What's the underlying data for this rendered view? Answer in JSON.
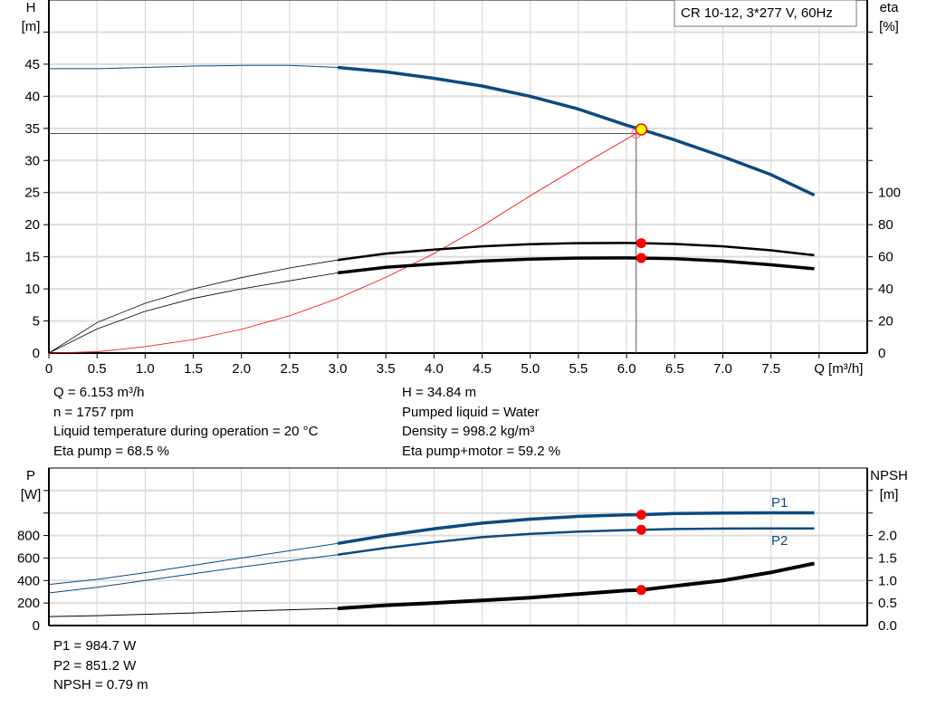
{
  "chart_data": [
    {
      "type": "line",
      "title": "CR 10-12, 3*277 V, 60Hz",
      "xlabel": "Q [m³/h]",
      "xlim": [
        0,
        8.5
      ],
      "xticks": [
        "0",
        "0.5",
        "1.0",
        "1.5",
        "2.0",
        "2.5",
        "3.0",
        "3.5",
        "4.0",
        "4.5",
        "5.0",
        "5.5",
        "6.0",
        "6.5",
        "7.0",
        "7.5"
      ],
      "ylabel": "H",
      "yunit": "[m]",
      "ylim": [
        0,
        55
      ],
      "yticks": [
        "0",
        "5",
        "10",
        "15",
        "20",
        "25",
        "30",
        "35",
        "40",
        "45"
      ],
      "y2label": "eta",
      "y2unit": "[%]",
      "y2lim": [
        0,
        220
      ],
      "y2ticks": [
        "0",
        "20",
        "40",
        "60",
        "80",
        "100"
      ],
      "grid": true,
      "x": [
        0,
        0.5,
        1,
        1.5,
        2,
        2.5,
        3,
        3.5,
        4,
        4.5,
        5,
        5.5,
        6,
        6.153,
        6.5,
        7,
        7.5,
        7.95
      ],
      "series": [
        {
          "axis": "H",
          "color": "#0b4a80",
          "values": [
            44.3,
            44.3,
            44.5,
            44.7,
            44.8,
            44.8,
            44.5,
            43.8,
            42.8,
            41.6,
            40,
            38,
            35.5,
            34.84,
            33.2,
            30.6,
            27.8,
            24.6
          ]
        },
        {
          "axis": "eta",
          "color": "#000000",
          "values": [
            0,
            19,
            31,
            40,
            47,
            53,
            58,
            62,
            64.5,
            66.5,
            67.8,
            68.5,
            68.6,
            68.5,
            68,
            66.5,
            64,
            61
          ]
        },
        {
          "axis": "eta",
          "color": "#000000",
          "values": [
            0,
            15,
            26,
            34,
            40,
            45,
            50,
            53.5,
            55.5,
            57.3,
            58.5,
            59.2,
            59.3,
            59.2,
            58.8,
            57.3,
            55,
            52.5
          ]
        }
      ],
      "system_curve": {
        "color": "#ff0000",
        "x": [
          0,
          0.5,
          1,
          1.5,
          2,
          2.5,
          3,
          3.5,
          4,
          4.5,
          5,
          5.5,
          6.1
        ],
        "values": [
          0,
          0.2,
          1,
          2.1,
          3.7,
          5.8,
          8.5,
          11.8,
          15.5,
          19.8,
          24.5,
          29,
          34.2
        ]
      },
      "duty_point": {
        "Q": 6.153,
        "H": 34.84,
        "eta_pump": 68.5,
        "eta_total": 59.2,
        "crosshair_Q": 6.1,
        "crosshair_H": 34.2
      }
    },
    {
      "type": "line",
      "xlim": [
        0,
        8.5
      ],
      "ylabel": "P",
      "yunit": "[W]",
      "ylim": [
        0,
        1400
      ],
      "yticks": [
        "0",
        "200",
        "400",
        "600",
        "800"
      ],
      "y2label": "NPSH",
      "y2unit": "[m]",
      "y2lim": [
        0,
        3.5
      ],
      "y2ticks": [
        "0.0",
        "0.5",
        "1.0",
        "1.5",
        "2.0"
      ],
      "grid": true,
      "x": [
        0,
        0.5,
        1,
        1.5,
        2,
        2.5,
        3,
        3.5,
        4,
        4.5,
        5,
        5.5,
        6,
        6.153,
        6.5,
        7,
        7.5,
        7.95
      ],
      "series": [
        {
          "name": "P1",
          "axis": "P",
          "color": "#0b4a80",
          "values": [
            365,
            410,
            470,
            535,
            600,
            665,
            730,
            800,
            860,
            910,
            945,
            970,
            983,
            985,
            995,
            1000,
            1002,
            1002
          ]
        },
        {
          "name": "P2",
          "axis": "P",
          "color": "#0b4a80",
          "values": [
            290,
            340,
            400,
            460,
            520,
            575,
            630,
            690,
            740,
            785,
            815,
            835,
            848,
            851,
            858,
            862,
            863,
            863
          ]
        },
        {
          "axis": "NPSH",
          "color": "#000000",
          "values": [
            0.2,
            0.22,
            0.25,
            0.28,
            0.32,
            0.35,
            0.38,
            0.45,
            0.5,
            0.56,
            0.62,
            0.7,
            0.78,
            0.79,
            0.88,
            1.0,
            1.18,
            1.38
          ]
        }
      ],
      "duty_point": {
        "Q": 6.153,
        "P1": 984.7,
        "P2": 851.2,
        "NPSH": 0.79
      }
    }
  ],
  "info_top_left": [
    "Q = 6.153 m³/h",
    "n = 1757 rpm",
    "Liquid temperature during operation = 20 °C",
    "Eta pump = 68.5 %"
  ],
  "info_top_right": [
    "H = 34.84 m",
    "Pumped liquid = Water",
    "Density = 998.2 kg/m³",
    "Eta pump+motor = 59.2 %"
  ],
  "info_bottom": [
    "P1 = 984.7 W",
    "P2 = 851.2 W",
    "NPSH = 0.79 m"
  ]
}
